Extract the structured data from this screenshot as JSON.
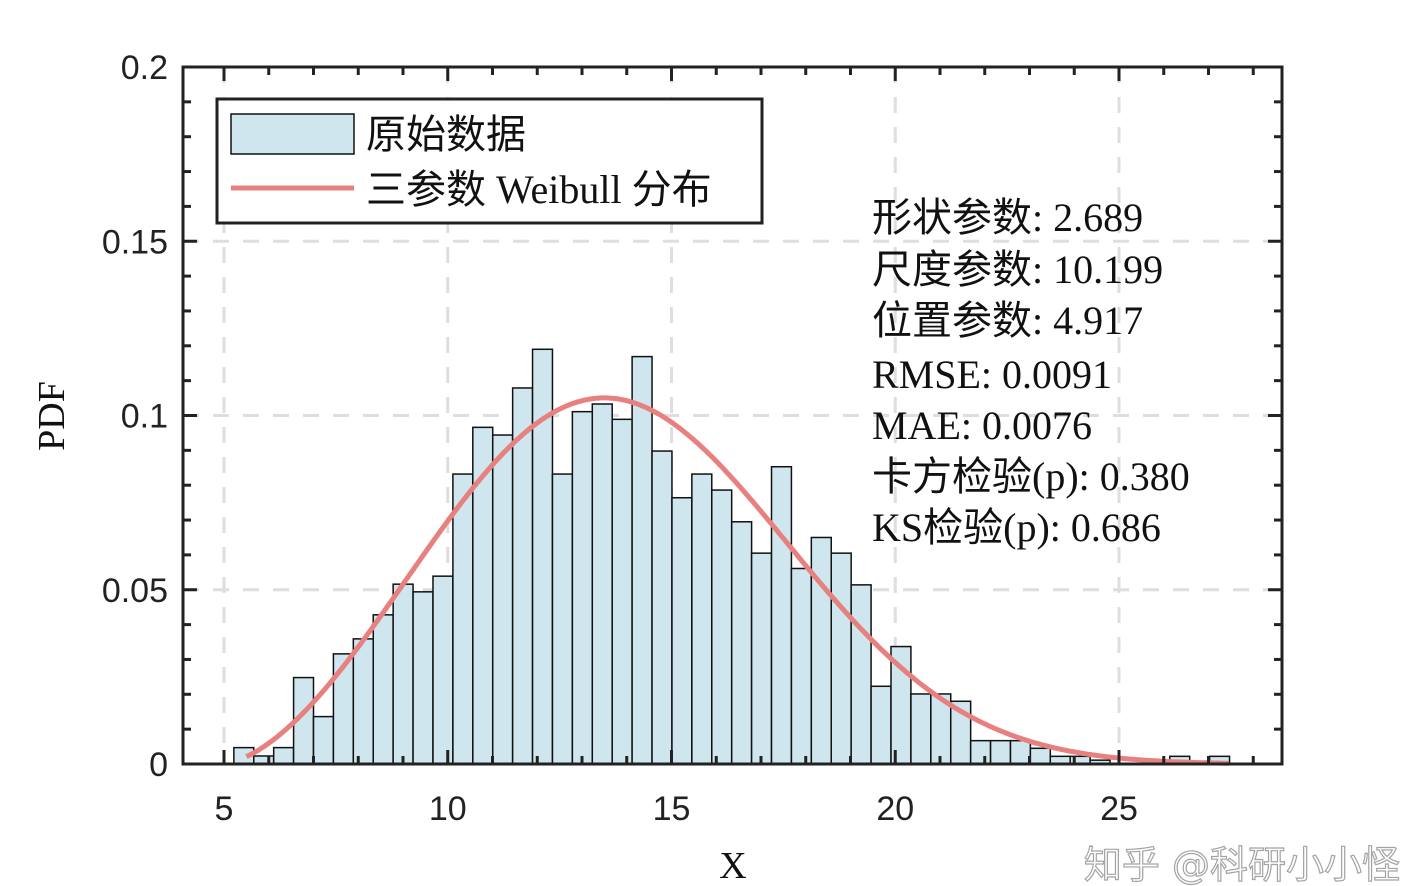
{
  "chart_data": {
    "type": "bar",
    "title": "",
    "xlabel": "X",
    "ylabel": "PDF",
    "xlim": [
      4.2,
      29
    ],
    "ylim": [
      0,
      0.2
    ],
    "xticks": [
      5,
      10,
      15,
      20,
      25
    ],
    "xtick_labels": [
      "5",
      "10",
      "15",
      "20",
      "25"
    ],
    "yticks": [
      0,
      0.05,
      0.1,
      0.15,
      0.2
    ],
    "ytick_labels": [
      "0",
      "0.05",
      "0.1",
      "0.15",
      "0.2"
    ],
    "grid": true,
    "legend_position": "top-left",
    "histogram": {
      "name": "原始数据",
      "bin_start": 5.22,
      "bin_width": 0.445,
      "values": [
        0.0047,
        0.0023,
        0.0047,
        0.0248,
        0.0136,
        0.0316,
        0.0359,
        0.0428,
        0.0516,
        0.0494,
        0.0539,
        0.0832,
        0.0966,
        0.0944,
        0.1079,
        0.119,
        0.0832,
        0.1011,
        0.1033,
        0.0989,
        0.1169,
        0.0898,
        0.0764,
        0.0832,
        0.0786,
        0.0695,
        0.0605,
        0.0853,
        0.0561,
        0.065,
        0.0605,
        0.0514,
        0.0223,
        0.0337,
        0.0201,
        0.0201,
        0.018,
        0.0067,
        0.0067,
        0.0067,
        0.0045,
        0.0022,
        0.0022,
        0.0011,
        0,
        0,
        0,
        0.0022,
        0,
        0.0022
      ],
      "fill": "#cfe6ee",
      "edge": "#111111"
    },
    "curve": {
      "name": "三参数 Weibull 分布",
      "shape": 2.689,
      "scale": 10.199,
      "location": 4.917,
      "x_range": [
        5.5,
        27.5
      ],
      "color": "#e88080"
    },
    "annotations": [
      "形状参数:  2.689",
      "尺度参数:  10.199",
      "位置参数:  4.917",
      "RMSE: 0.0091",
      "MAE: 0.0076",
      "卡方检验(p): 0.380",
      "KS检验(p): 0.686"
    ]
  },
  "watermark": "知乎 @科研小小怪"
}
